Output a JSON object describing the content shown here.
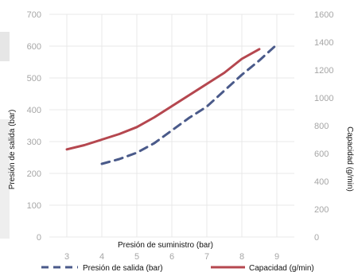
{
  "chart_data": {
    "type": "line",
    "xlabel": "Presión de suministro (bar)",
    "ylabel": "Presión de salida (bar)",
    "y2label": "Capacidad (g/min)",
    "xlim": [
      2.5,
      9.5
    ],
    "ylim": [
      0,
      700
    ],
    "y2lim": [
      0,
      1600
    ],
    "x_ticks": [
      3,
      4,
      5,
      6,
      7,
      8,
      9
    ],
    "y_ticks": [
      0,
      100,
      200,
      300,
      400,
      500,
      600,
      700
    ],
    "y2_ticks": [
      0,
      200,
      400,
      600,
      800,
      1000,
      1200,
      1400,
      1600
    ],
    "grid": true,
    "legend_position": "bottom",
    "series": [
      {
        "name": "Presión de salida (bar)",
        "axis": "left",
        "color": "#4a5a8a",
        "style": "dashed",
        "x": [
          4,
          4.5,
          5,
          5.5,
          6,
          6.5,
          7,
          7.5,
          8,
          8.5,
          9
        ],
        "y": [
          230,
          245,
          265,
          295,
          335,
          375,
          410,
          460,
          510,
          555,
          605
        ]
      },
      {
        "name": "Capacidad (g/min)",
        "axis": "right",
        "color": "#b5474f",
        "style": "solid",
        "x": [
          3,
          3.5,
          4,
          4.5,
          5,
          5.5,
          6,
          6.5,
          7,
          7.5,
          8,
          8.5
        ],
        "y": [
          630,
          660,
          700,
          740,
          790,
          860,
          940,
          1020,
          1100,
          1180,
          1280,
          1350
        ]
      }
    ]
  }
}
